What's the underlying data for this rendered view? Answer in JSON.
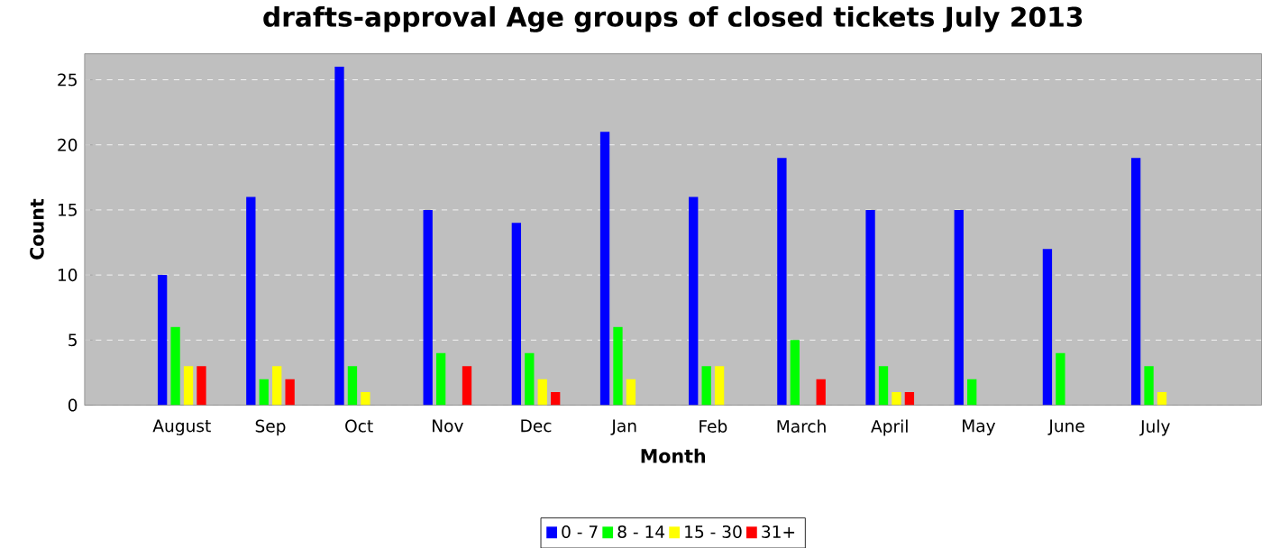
{
  "chart_data": {
    "type": "bar",
    "title": "drafts-approval Age groups of closed tickets July 2013",
    "xlabel": "Month",
    "ylabel": "Count",
    "categories": [
      "August",
      "Sep",
      "Oct",
      "Nov",
      "Dec",
      "Jan",
      "Feb",
      "March",
      "April",
      "May",
      "June",
      "July"
    ],
    "series": [
      {
        "name": "0 - 7",
        "color": "#0000ff",
        "values": [
          10,
          16,
          26,
          15,
          14,
          21,
          16,
          19,
          15,
          15,
          12,
          19
        ]
      },
      {
        "name": "8 - 14",
        "color": "#00ff00",
        "values": [
          6,
          2,
          3,
          4,
          4,
          6,
          3,
          5,
          3,
          2,
          4,
          3
        ]
      },
      {
        "name": "15 - 30",
        "color": "#ffff00",
        "values": [
          3,
          3,
          1,
          0,
          2,
          2,
          3,
          0,
          1,
          0,
          0,
          1
        ]
      },
      {
        "name": "31+",
        "color": "#ff0000",
        "values": [
          3,
          2,
          0,
          3,
          1,
          0,
          0,
          2,
          1,
          0,
          0,
          0
        ]
      }
    ],
    "ylim": [
      0,
      27
    ],
    "yticks": [
      0,
      5,
      10,
      15,
      20,
      25
    ],
    "grid": "y",
    "legend": "bottom"
  }
}
